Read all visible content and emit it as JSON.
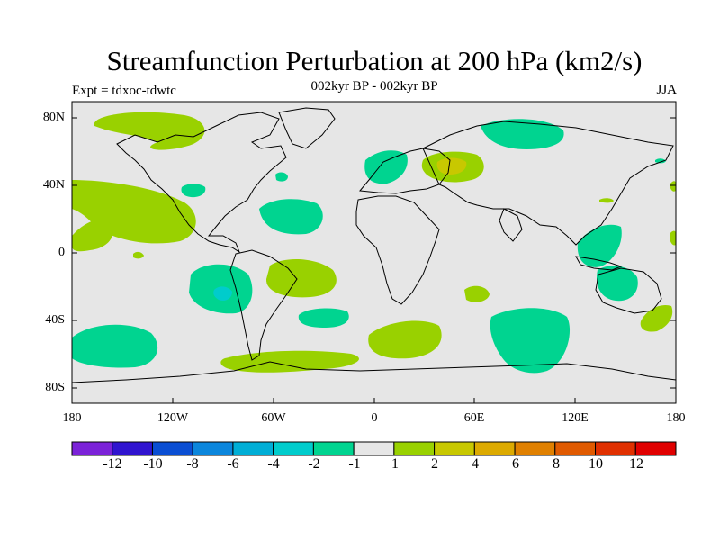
{
  "title": "Streamfunction Perturbation at 200 hPa (km2/s)",
  "subtitle": "002kyr BP - 002kyr BP",
  "expt": "Expt = tdxoc-tdwtc",
  "season": "JJA",
  "lat_labels": [
    "80N",
    "40N",
    "0",
    "40S",
    "80S"
  ],
  "lon_labels": [
    "180",
    "120W",
    "60W",
    "0",
    "60E",
    "120E",
    "180"
  ],
  "colorbar": {
    "colors": [
      "#7b22d8",
      "#3014cf",
      "#0a4ed3",
      "#0b86dc",
      "#00aed6",
      "#00cccc",
      "#00d490",
      "#e6e6e6",
      "#99d100",
      "#c8c800",
      "#dcaa00",
      "#e08000",
      "#e05a00",
      "#e03000",
      "#e00000"
    ],
    "labels": [
      "-12",
      "-10",
      "-8",
      "-6",
      "-4",
      "-2",
      "-1",
      "1",
      "2",
      "4",
      "6",
      "8",
      "10",
      "12"
    ]
  },
  "colors": {
    "ocean_bg": "#e6e6e6",
    "neg1": "#00d490",
    "neg2": "#00cccc",
    "pos1": "#99d100",
    "pos2": "#c8c800"
  }
}
